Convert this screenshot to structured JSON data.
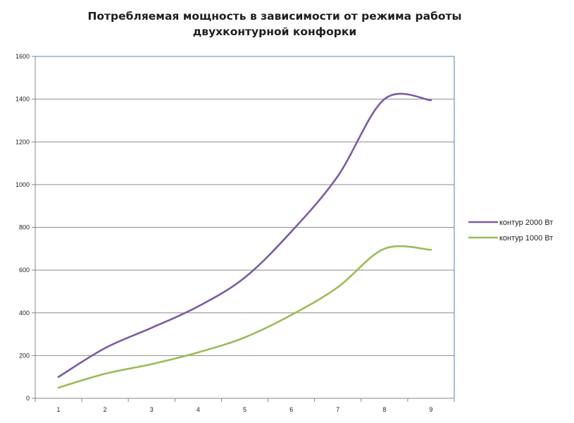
{
  "chart_data": {
    "type": "line",
    "title_lines": [
      "Потребляемая мощность в зависимости от режима работы",
      "двухконтурной конфорки"
    ],
    "xlabel": "",
    "ylabel": "",
    "categories": [
      "1",
      "2",
      "3",
      "4",
      "5",
      "6",
      "7",
      "8",
      "9"
    ],
    "ylim": [
      0,
      1600
    ],
    "yticks": [
      0,
      200,
      400,
      600,
      800,
      1000,
      1200,
      1400,
      1600
    ],
    "grid": "horizontal",
    "legend_position": "right",
    "series": [
      {
        "name": "контур 2000 Вт",
        "color": "#7b5ba3",
        "values": [
          100,
          235,
          330,
          430,
          565,
          780,
          1040,
          1400,
          1395
        ]
      },
      {
        "name": "контур 1000 Вт",
        "color": "#9bbb59",
        "values": [
          50,
          115,
          160,
          215,
          285,
          390,
          520,
          700,
          695
        ]
      }
    ]
  }
}
